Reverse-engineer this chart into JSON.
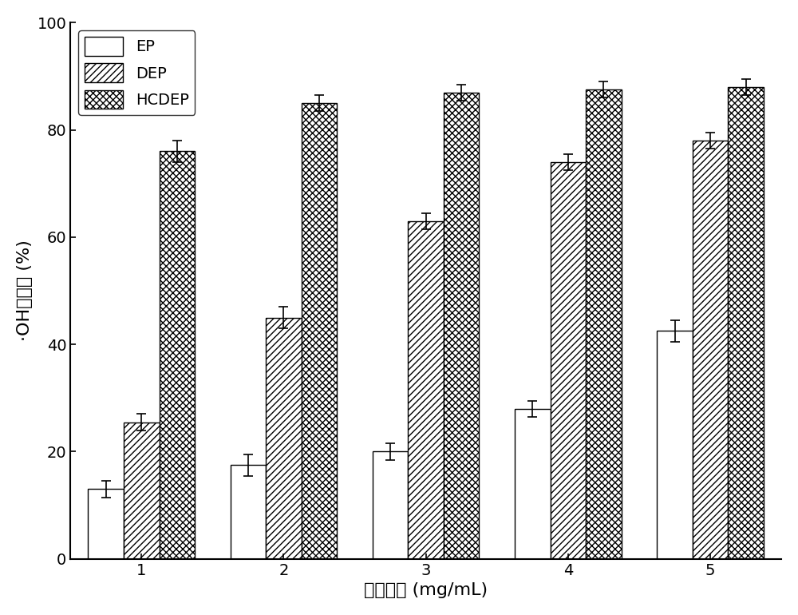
{
  "categories": [
    1,
    2,
    3,
    4,
    5
  ],
  "EP_values": [
    13.0,
    17.5,
    20.0,
    28.0,
    42.5
  ],
  "DEP_values": [
    25.5,
    45.0,
    63.0,
    74.0,
    78.0
  ],
  "HCDEP_values": [
    76.0,
    85.0,
    87.0,
    87.5,
    88.0
  ],
  "EP_errors": [
    1.5,
    2.0,
    1.5,
    1.5,
    2.0
  ],
  "DEP_errors": [
    1.5,
    2.0,
    1.5,
    1.5,
    1.5
  ],
  "HCDEP_errors": [
    2.0,
    1.5,
    1.5,
    1.5,
    1.5
  ],
  "xlabel": "样品浓度 (mg/mL)",
  "ylabel": "·OH清除率 (%)",
  "ylim": [
    0,
    100
  ],
  "yticks": [
    0,
    20,
    40,
    60,
    80,
    100
  ],
  "bar_width": 0.25,
  "legend_labels": [
    "EP",
    "DEP",
    "HCDEP"
  ],
  "EP_color": "#ffffff",
  "DEP_color": "#ffffff",
  "HCDEP_color": "#ffffff",
  "EP_hatch": "",
  "DEP_hatch": "////",
  "HCDEP_hatch": "xxxx",
  "title_fontsize": 14,
  "label_fontsize": 16,
  "tick_fontsize": 14,
  "legend_fontsize": 14
}
